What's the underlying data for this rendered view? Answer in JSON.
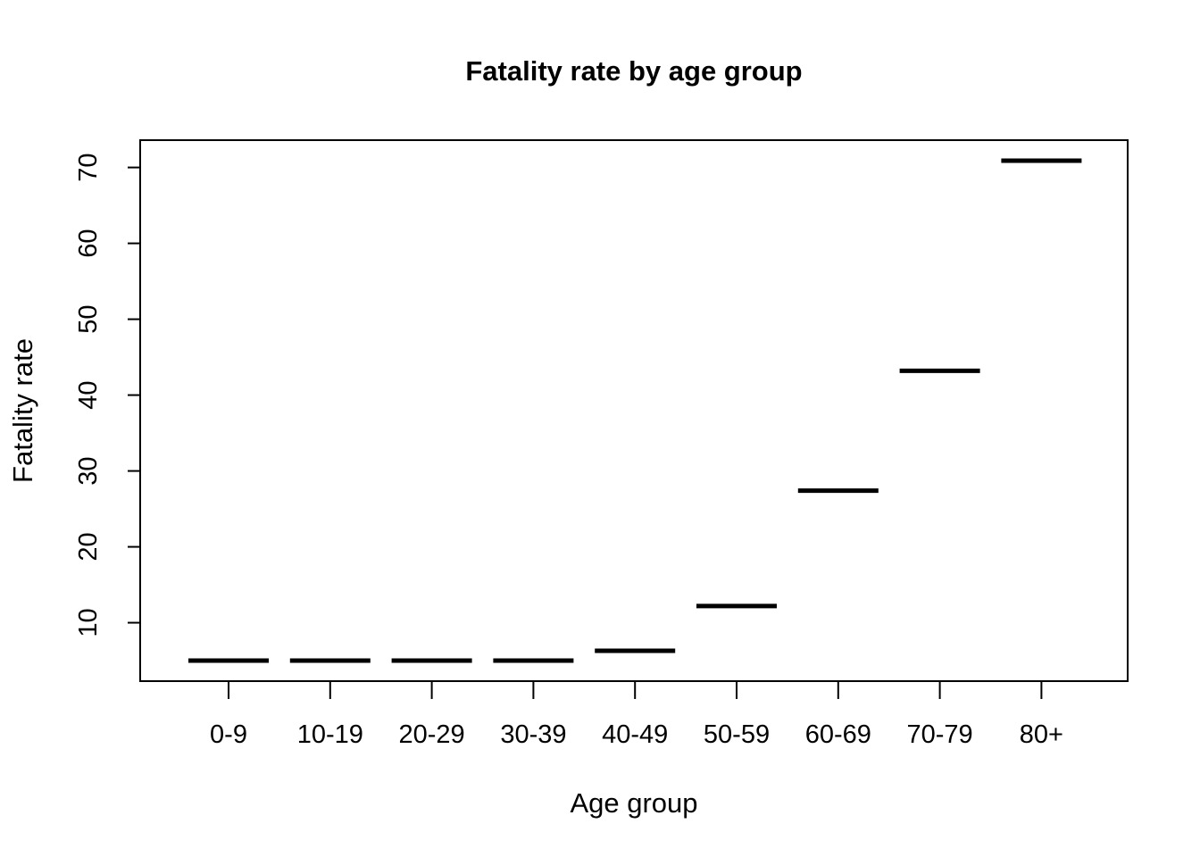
{
  "chart_data": {
    "type": "line",
    "title": "Fatality rate by age group",
    "xlabel": "Age group",
    "ylabel": "Fatality rate",
    "categories": [
      "0-9",
      "10-19",
      "20-29",
      "30-39",
      "40-49",
      "50-59",
      "60-69",
      "70-79",
      "80+"
    ],
    "values": [
      5.0,
      5.0,
      5.0,
      5.0,
      6.3,
      12.2,
      27.4,
      43.2,
      70.9
    ],
    "ylim": [
      2.3,
      73.6
    ],
    "yticks": [
      10,
      20,
      30,
      40,
      50,
      60,
      70
    ],
    "grid": false,
    "legend": "none",
    "mark_style": "horizontal-segment",
    "color": "#000000"
  }
}
